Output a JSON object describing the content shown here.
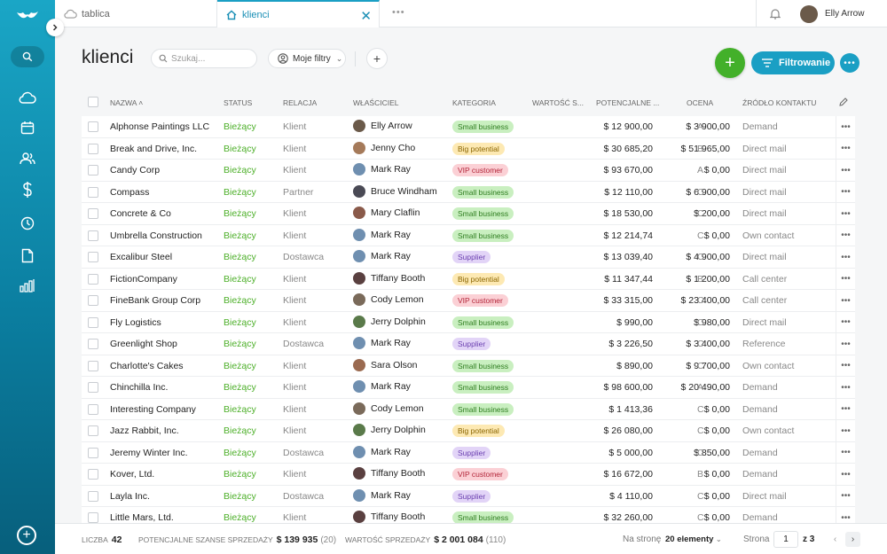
{
  "tabs": [
    {
      "label": "tablica",
      "icon": "cloud-icon"
    },
    {
      "label": "klienci",
      "icon": "home-icon"
    }
  ],
  "user": {
    "name": "Elly Arrow"
  },
  "page": {
    "title": "klienci",
    "search_placeholder": "Szukaj...",
    "filters_label": "Moje filtry",
    "filter_button": "Filtrowanie"
  },
  "columns": {
    "name": "NAZWA",
    "status": "STATUS",
    "relation": "RELACJA",
    "owner": "WŁAŚCICIEL",
    "category": "KATEGORIA",
    "value": "WARTOŚĆ S...",
    "potential": "POTENCJALNE ...",
    "rating": "OCENA",
    "source": "ŹRÓDŁO KONTAKTU"
  },
  "category_colors": {
    "Small business": {
      "bg": "#c9efc0",
      "fg": "#2e7d1f"
    },
    "Big potential": {
      "bg": "#fde9b3",
      "fg": "#8a6500"
    },
    "VIP customer": {
      "bg": "#fbd0d5",
      "fg": "#b3263a"
    },
    "Supplier": {
      "bg": "#e2d4f7",
      "fg": "#6a3fb0"
    }
  },
  "rows": [
    {
      "name": "Alphonse Paintings LLC",
      "status": "Bieżący",
      "relation": "Klient",
      "owner": "Elly Arrow",
      "avatar_color": "#6b5a4a",
      "category": "Small business",
      "value": "$ 12 900,00",
      "potential": "$ 3 900,00",
      "rating": "A",
      "source": "Demand"
    },
    {
      "name": "Break and Drive, Inc.",
      "status": "Bieżący",
      "relation": "Klient",
      "owner": "Jenny Cho",
      "avatar_color": "#a57a5a",
      "category": "Big potential",
      "value": "$ 30 685,20",
      "potential": "$ 51 965,00",
      "rating": "B",
      "source": "Direct mail"
    },
    {
      "name": "Candy Corp",
      "status": "Bieżący",
      "relation": "Klient",
      "owner": "Mark Ray",
      "avatar_color": "#6f8fb0",
      "category": "VIP customer",
      "value": "$ 93 670,00",
      "potential": "$ 0,00",
      "rating": "A",
      "source": "Direct mail"
    },
    {
      "name": "Compass",
      "status": "Bieżący",
      "relation": "Partner",
      "owner": "Bruce Windham",
      "avatar_color": "#4a4a55",
      "category": "Small business",
      "value": "$ 12 110,00",
      "potential": "$ 6 900,00",
      "rating": "C",
      "source": "Direct mail"
    },
    {
      "name": "Concrete & Co",
      "status": "Bieżący",
      "relation": "Klient",
      "owner": "Mary Claflin",
      "avatar_color": "#8a5a4a",
      "category": "Small business",
      "value": "$ 18 530,00",
      "potential": "$ 200,00",
      "rating": "C",
      "source": "Direct mail"
    },
    {
      "name": "Umbrella Construction",
      "status": "Bieżący",
      "relation": "Klient",
      "owner": "Mark Ray",
      "avatar_color": "#6f8fb0",
      "category": "Small business",
      "value": "$ 12 214,74",
      "potential": "$ 0,00",
      "rating": "C",
      "source": "Own contact"
    },
    {
      "name": "Excalibur Steel",
      "status": "Bieżący",
      "relation": "Dostawca",
      "owner": "Mark Ray",
      "avatar_color": "#6f8fb0",
      "category": "Supplier",
      "value": "$ 13 039,40",
      "potential": "$ 4 900,00",
      "rating": "C",
      "source": "Direct mail"
    },
    {
      "name": "FictionCompany",
      "status": "Bieżący",
      "relation": "Klient",
      "owner": "Tiffany Booth",
      "avatar_color": "#5a4040",
      "category": "Big potential",
      "value": "$ 11 347,44",
      "potential": "$ 1 200,00",
      "rating": "B",
      "source": "Call center"
    },
    {
      "name": "FineBank Group Corp",
      "status": "Bieżący",
      "relation": "Klient",
      "owner": "Cody Lemon",
      "avatar_color": "#7a6a5a",
      "category": "VIP customer",
      "value": "$ 33 315,00",
      "potential": "$ 23 400,00",
      "rating": "C",
      "source": "Call center"
    },
    {
      "name": "Fly Logistics",
      "status": "Bieżący",
      "relation": "Klient",
      "owner": "Jerry Dolphin",
      "avatar_color": "#5a7a4a",
      "category": "Small business",
      "value": "$ 990,00",
      "potential": "$ 980,00",
      "rating": "C",
      "source": "Direct mail"
    },
    {
      "name": "Greenlight Shop",
      "status": "Bieżący",
      "relation": "Dostawca",
      "owner": "Mark Ray",
      "avatar_color": "#6f8fb0",
      "category": "Supplier",
      "value": "$ 3 226,50",
      "potential": "$ 3 400,00",
      "rating": "C",
      "source": "Reference"
    },
    {
      "name": "Charlotte's Cakes",
      "status": "Bieżący",
      "relation": "Klient",
      "owner": "Sara Olson",
      "avatar_color": "#9a6a50",
      "category": "Small business",
      "value": "$ 890,00",
      "potential": "$ 9 700,00",
      "rating": "C",
      "source": "Own contact"
    },
    {
      "name": "Chinchilla Inc.",
      "status": "Bieżący",
      "relation": "Klient",
      "owner": "Mark Ray",
      "avatar_color": "#6f8fb0",
      "category": "Small business",
      "value": "$ 98 600,00",
      "potential": "$ 20 490,00",
      "rating": "A",
      "source": "Demand"
    },
    {
      "name": "Interesting Company",
      "status": "Bieżący",
      "relation": "Klient",
      "owner": "Cody Lemon",
      "avatar_color": "#7a6a5a",
      "category": "Small business",
      "value": "$ 1 413,36",
      "potential": "$ 0,00",
      "rating": "C",
      "source": "Demand"
    },
    {
      "name": "Jazz Rabbit, Inc.",
      "status": "Bieżący",
      "relation": "Klient",
      "owner": "Jerry Dolphin",
      "avatar_color": "#5a7a4a",
      "category": "Big potential",
      "value": "$ 26 080,00",
      "potential": "$ 0,00",
      "rating": "C",
      "source": "Own contact"
    },
    {
      "name": "Jeremy Winter Inc.",
      "status": "Bieżący",
      "relation": "Dostawca",
      "owner": "Mark Ray",
      "avatar_color": "#6f8fb0",
      "category": "Supplier",
      "value": "$ 5 000,00",
      "potential": "$ 850,00",
      "rating": "C",
      "source": "Demand"
    },
    {
      "name": "Kover, Ltd.",
      "status": "Bieżący",
      "relation": "Klient",
      "owner": "Tiffany Booth",
      "avatar_color": "#5a4040",
      "category": "VIP customer",
      "value": "$ 16 672,00",
      "potential": "$ 0,00",
      "rating": "B",
      "source": "Demand"
    },
    {
      "name": "Layla Inc.",
      "status": "Bieżący",
      "relation": "Dostawca",
      "owner": "Mark Ray",
      "avatar_color": "#6f8fb0",
      "category": "Supplier",
      "value": "$ 4 110,00",
      "potential": "$ 0,00",
      "rating": "C",
      "source": "Direct mail"
    },
    {
      "name": "Little Mars, Ltd.",
      "status": "Bieżący",
      "relation": "Klient",
      "owner": "Tiffany Booth",
      "avatar_color": "#5a4040",
      "category": "Small business",
      "value": "$ 32 260,00",
      "potential": "$ 0,00",
      "rating": "C",
      "source": "Demand"
    }
  ],
  "footer": {
    "count_label": "LICZBA",
    "count_value": "42",
    "potential_label": "POTENCJALNE SZANSE SPRZEDAŻY",
    "potential_value": "$ 139 935",
    "potential_count": "(20)",
    "value_label": "WARTOŚĆ SPRZEDAŻY",
    "value_value": "$ 2 001 084",
    "value_count": "(110)",
    "per_page_label": "Na stronę",
    "per_page_value": "20 elementy",
    "page_label": "Strona",
    "page_value": "1",
    "page_total": "z 3"
  }
}
